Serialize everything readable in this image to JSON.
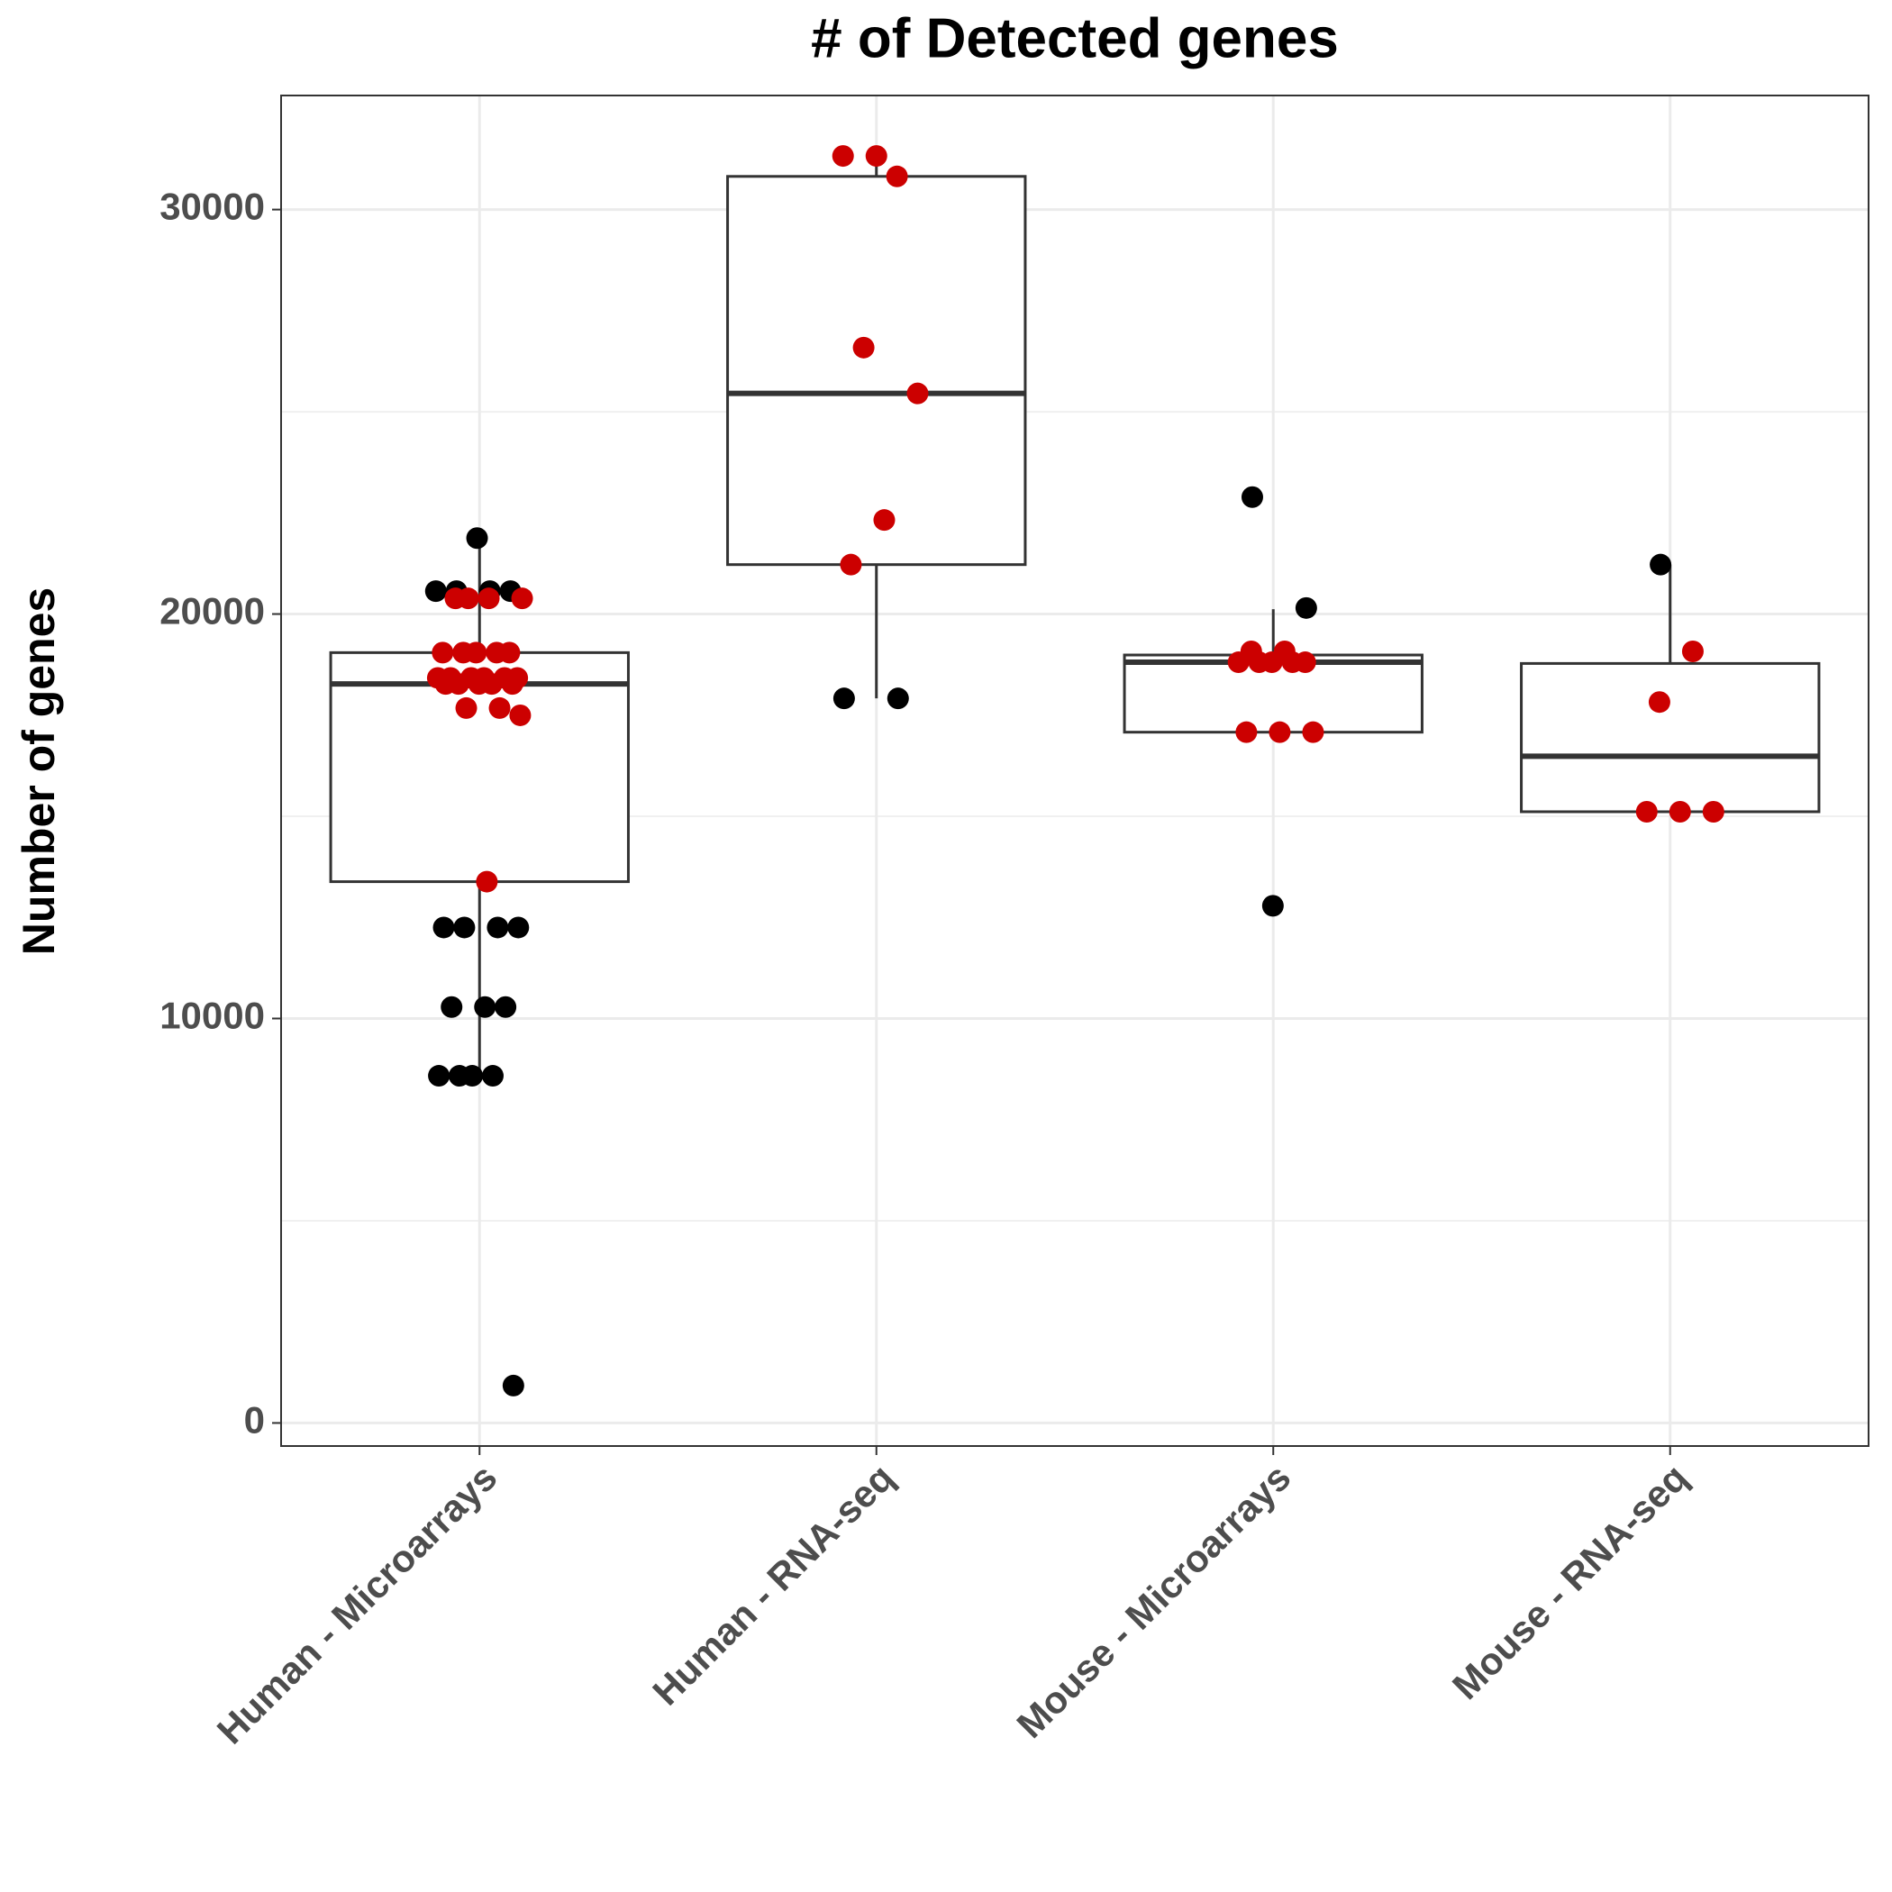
{
  "chart_data": {
    "type": "box",
    "title": "# of Detected genes",
    "y_label": "Number of genes",
    "categories": [
      "Human - Microarrays",
      "Human - RNA-seq",
      "Mouse - Microarrays",
      "Mouse - RNA-seq"
    ],
    "boxes": [
      {
        "whisker_low": 8584,
        "q1": 13383,
        "median": 18271,
        "q3": 19046,
        "whisker_high": 21878
      },
      {
        "whisker_low": 17914,
        "q1": 21222,
        "median": 25454,
        "q3": 30820,
        "whisker_high": 31297
      },
      {
        "whisker_low": 17079,
        "q1": 17079,
        "median": 18808,
        "q3": 18987,
        "whisker_high": 20119
      },
      {
        "whisker_low": 15112,
        "q1": 15112,
        "median": 16483,
        "q3": 18778,
        "whisker_high": 21222
      }
    ],
    "points": [
      [
        {
          "color": "#000000",
          "values": [
            20566,
            20566,
            20566,
            20566,
            21878,
            12250,
            12250,
            12250,
            12250,
            10283,
            10283,
            10283,
            8584,
            8584,
            8584,
            8584,
            924
          ]
        },
        {
          "color": "#cc0000",
          "values": [
            20387,
            20387,
            20387,
            20387,
            19046,
            19046,
            19046,
            19046,
            19046,
            18420,
            18420,
            18420,
            18420,
            18420,
            18420,
            18271,
            18271,
            18271,
            18271,
            18271,
            17675,
            17675,
            17496,
            13383
          ]
        }
      ],
      [
        {
          "color": "#000000",
          "values": [
            17914,
            17914
          ]
        },
        {
          "color": "#cc0000",
          "values": [
            31326,
            31326,
            30820,
            26587,
            25454,
            22325,
            21222
          ]
        }
      ],
      [
        {
          "color": "#000000",
          "values": [
            22891,
            20149,
            12787
          ]
        },
        {
          "color": "#cc0000",
          "values": [
            19076,
            19076,
            18808,
            18808,
            18808,
            18808,
            18808,
            17079,
            17079,
            17079
          ]
        }
      ],
      [
        {
          "color": "#000000",
          "values": [
            21222
          ]
        },
        {
          "color": "#cc0000",
          "values": [
            19076,
            17824,
            15112,
            15112,
            15112
          ]
        }
      ]
    ],
    "ylim": [
      -570,
      32820
    ],
    "yticks": [
      0,
      10000,
      20000,
      30000
    ],
    "grid": true
  }
}
